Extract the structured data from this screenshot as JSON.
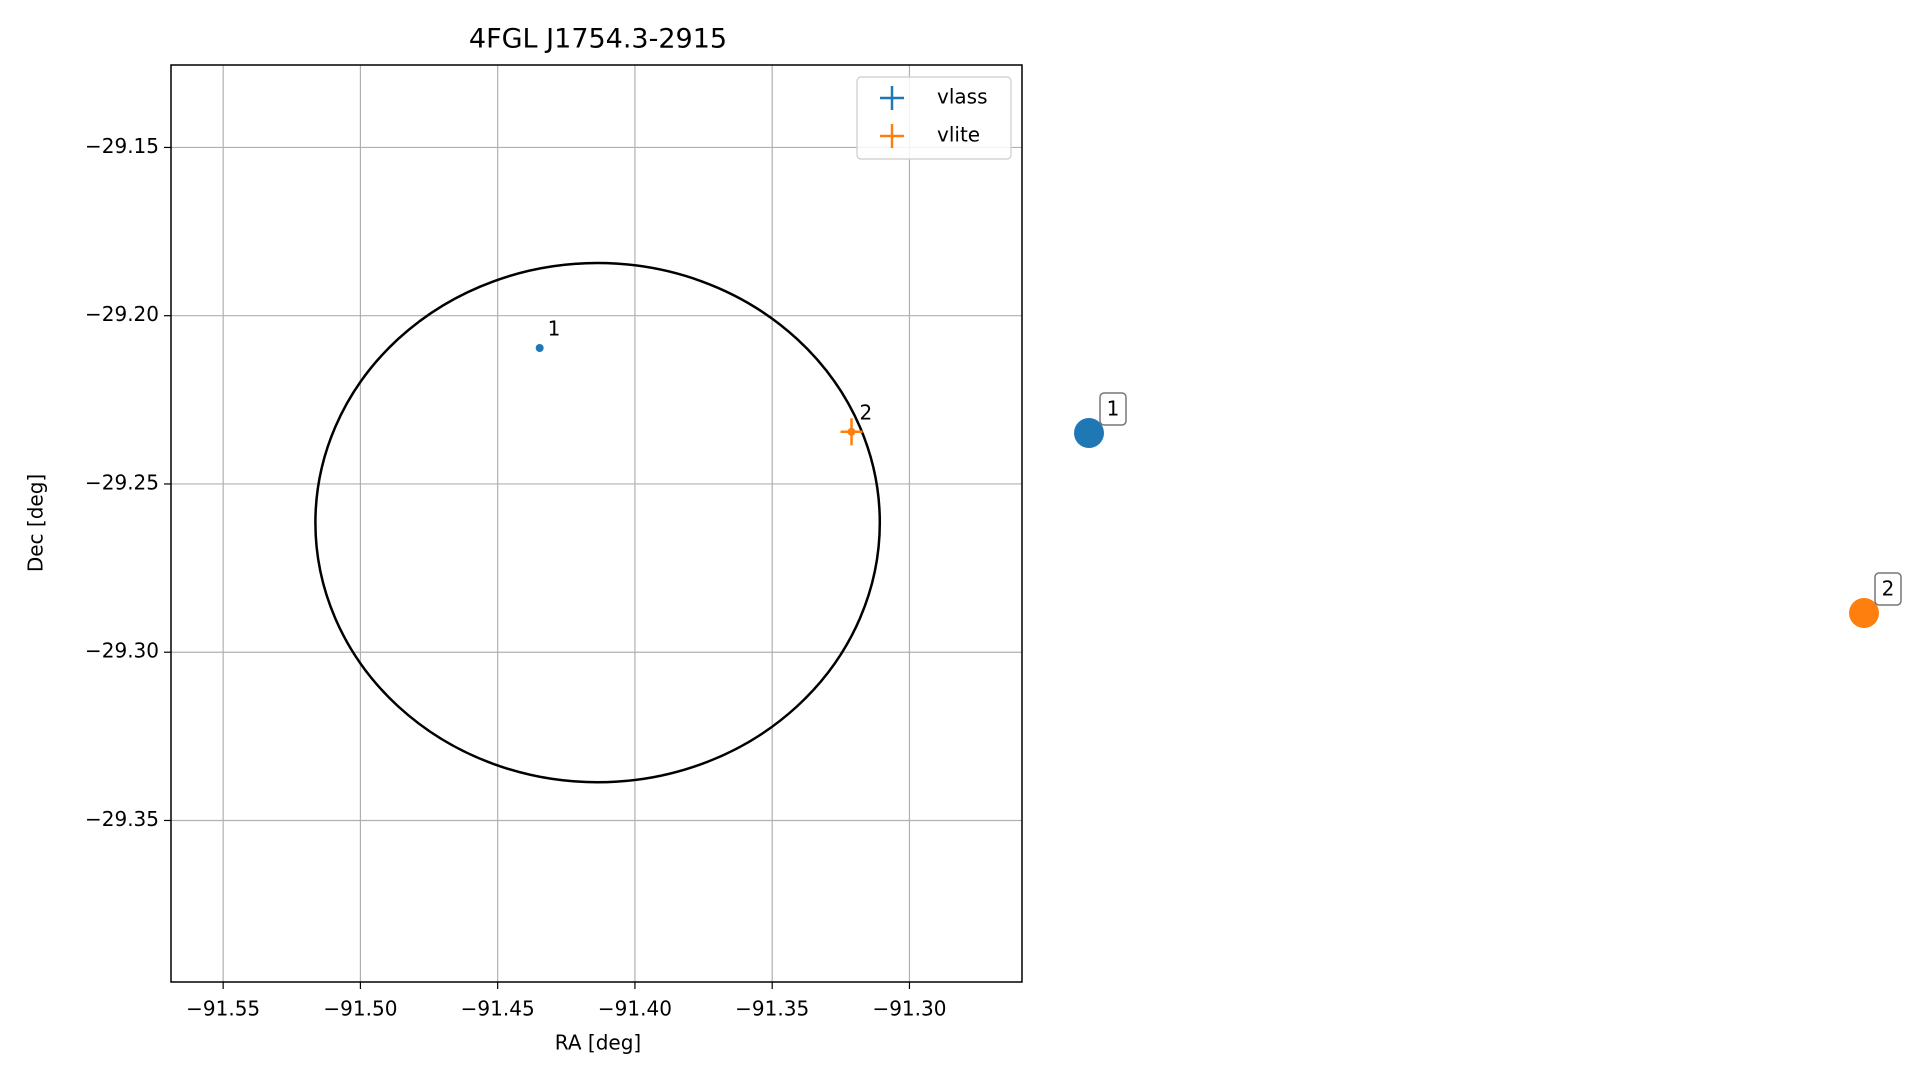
{
  "chart_data": {
    "type": "scatter",
    "title": "4FGL J1754.3-2915",
    "xlabel": "RA [deg]",
    "ylabel": "Dec [deg]",
    "xlim": [
      -91.569,
      -91.259
    ],
    "ylim": [
      -29.398,
      -29.1255
    ],
    "xticks": [
      {
        "value": -91.55,
        "label": "−91.55"
      },
      {
        "value": -91.5,
        "label": "−91.50"
      },
      {
        "value": -91.45,
        "label": "−91.45"
      },
      {
        "value": -91.4,
        "label": "−91.40"
      },
      {
        "value": -91.35,
        "label": "−91.35"
      },
      {
        "value": -91.3,
        "label": "−91.30"
      }
    ],
    "yticks": [
      {
        "value": -29.15,
        "label": "−29.15"
      },
      {
        "value": -29.2,
        "label": "−29.20"
      },
      {
        "value": -29.25,
        "label": "−29.25"
      },
      {
        "value": -29.3,
        "label": "−29.30"
      },
      {
        "value": -29.35,
        "label": "−29.35"
      }
    ],
    "grid": true,
    "legend": "upper right",
    "ellipse": {
      "x": -91.4136,
      "y": -29.2615,
      "width": 0.2056,
      "height": 0.1543,
      "color": "#000000"
    },
    "series": [
      {
        "name": "vlass",
        "color": "#1f77b4",
        "x": [
          -91.4347
        ],
        "y": [
          -29.2096
        ],
        "xerr": [
          0.001
        ],
        "yerr": [
          0.001
        ],
        "labels": [
          "1"
        ]
      },
      {
        "name": "vlite",
        "color": "#ff7f0e",
        "x": [
          -91.3211
        ],
        "y": [
          -29.2345
        ],
        "xerr": [
          0.004
        ],
        "yerr": [
          0.004
        ],
        "labels": [
          "2"
        ]
      }
    ]
  }
}
